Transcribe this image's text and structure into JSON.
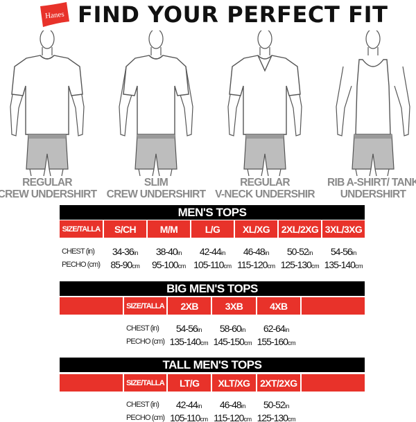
{
  "brand": {
    "logo_text": "Hanes",
    "logo_color": "#e8322a"
  },
  "title": "FIND YOUR PERFECT FIT",
  "styles": [
    {
      "line1": "REGULAR",
      "line2": "CREW UNDERSHIRT",
      "type": "crew"
    },
    {
      "line1": "SLIM",
      "line2": "CREW UNDERSHIRT",
      "type": "slim"
    },
    {
      "line1": "REGULAR",
      "line2": "V-NECK UNDERSHIR",
      "type": "vneck"
    },
    {
      "line1": "RIB A-SHIRT/ TANK",
      "line2": "UNDERSHIRT",
      "type": "tank"
    }
  ],
  "colors": {
    "red": "#e8322a",
    "black": "#000000",
    "label_gray": "#8a8a8a"
  },
  "tables": {
    "mens": {
      "title": "MEN'S TOPS",
      "size_label": "SIZE/TALLA",
      "sizes": [
        "S/CH",
        "M/M",
        "L/G",
        "XL/XG",
        "2XL/2XG",
        "3XL/3XG"
      ],
      "chest_label": "CHEST (in)",
      "pecho_label": "PECHO (cm)",
      "chest": [
        "34-36",
        "38-40",
        "42-44",
        "46-48",
        "50-52",
        "54-56"
      ],
      "pecho": [
        "85-90",
        "95-100",
        "105-110",
        "115-120",
        "125-130",
        "135-140"
      ],
      "in_unit": "in",
      "cm_unit": "cm"
    },
    "big": {
      "title": "BIG MEN'S TOPS",
      "size_label": "SIZE/TALLA",
      "sizes": [
        "2XB",
        "3XB",
        "4XB"
      ],
      "chest_label": "CHEST (in)",
      "pecho_label": "PECHO (cm)",
      "chest": [
        "54-56",
        "58-60",
        "62-64"
      ],
      "pecho": [
        "135-140",
        "145-150",
        "155-160"
      ],
      "in_unit": "in",
      "cm_unit": "cm"
    },
    "tall": {
      "title": "TALL MEN'S TOPS",
      "size_label": "SIZE/TALLA",
      "sizes": [
        "LT/G",
        "XLT/XG",
        "2XT/2XG"
      ],
      "chest_label": "CHEST (in)",
      "pecho_label": "PECHO (cm)",
      "chest": [
        "42-44",
        "46-48",
        "50-52"
      ],
      "pecho": [
        "105-110",
        "115-120",
        "125-130"
      ],
      "in_unit": "in",
      "cm_unit": "cm"
    }
  }
}
